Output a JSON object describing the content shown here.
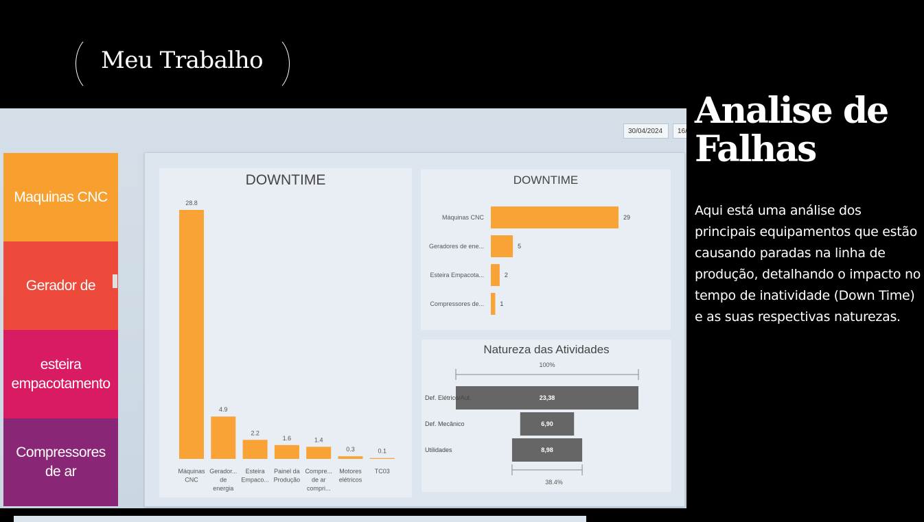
{
  "brand": {
    "title": "Meu Trabalho"
  },
  "side": {
    "heading_line1": "Analise de",
    "heading_line2": "Falhas",
    "description": "Aqui está uma análise dos principais equipamentos que estão causando paradas na linha de produção, detalhando o impacto no tempo de inatividade (Down Time) e as suas respectivas naturezas."
  },
  "dates": [
    "30/04/2024",
    "16/"
  ],
  "tiles": [
    {
      "label": "Maquinas CNC",
      "color": "#f7a030"
    },
    {
      "label": "Gerador de",
      "color": "#ed4a3c"
    },
    {
      "label": "esteira empacotamento",
      "color": "#d81b62"
    },
    {
      "label": "Compressores de ar",
      "color": "#8a2676"
    }
  ],
  "accent_color": "#f9a236",
  "funnel_color": "#666666",
  "chart_data": [
    {
      "type": "bar",
      "title": "DOWNTIME",
      "categories": [
        [
          "Máquinas",
          "CNC"
        ],
        [
          "Gerador...",
          "de",
          "energia"
        ],
        [
          "Esteira",
          "Empaco..."
        ],
        [
          "Painel da",
          "Produção"
        ],
        [
          "Compre...",
          "de ar",
          "compri..."
        ],
        [
          "Motores",
          "elétricos"
        ],
        [
          "TC03"
        ]
      ],
      "values": [
        28.8,
        4.9,
        2.2,
        1.6,
        1.4,
        0.3,
        0.1
      ],
      "data_labels": [
        "28.8",
        "4.9",
        "2.2",
        "1.6",
        "1.4",
        "0.3",
        "0.1"
      ]
    },
    {
      "type": "bar",
      "orientation": "horizontal",
      "title": "DOWNTIME",
      "categories": [
        "Máquinas CNC",
        "Geradores de ene...",
        "Esteira Empacota...",
        "Compressores de..."
      ],
      "values": [
        29,
        5,
        2,
        1
      ]
    },
    {
      "type": "funnel",
      "title": "Natureza das Atividades",
      "categories": [
        "Def. Elétrico/Aut.",
        "Def. Mecânico",
        "Utilidades"
      ],
      "values": [
        23.38,
        6.9,
        8.98
      ],
      "data_labels": [
        "23,38",
        "6,90",
        "8,98"
      ],
      "top_percent_label": "100%",
      "bottom_percent_label": "38.4%"
    }
  ]
}
